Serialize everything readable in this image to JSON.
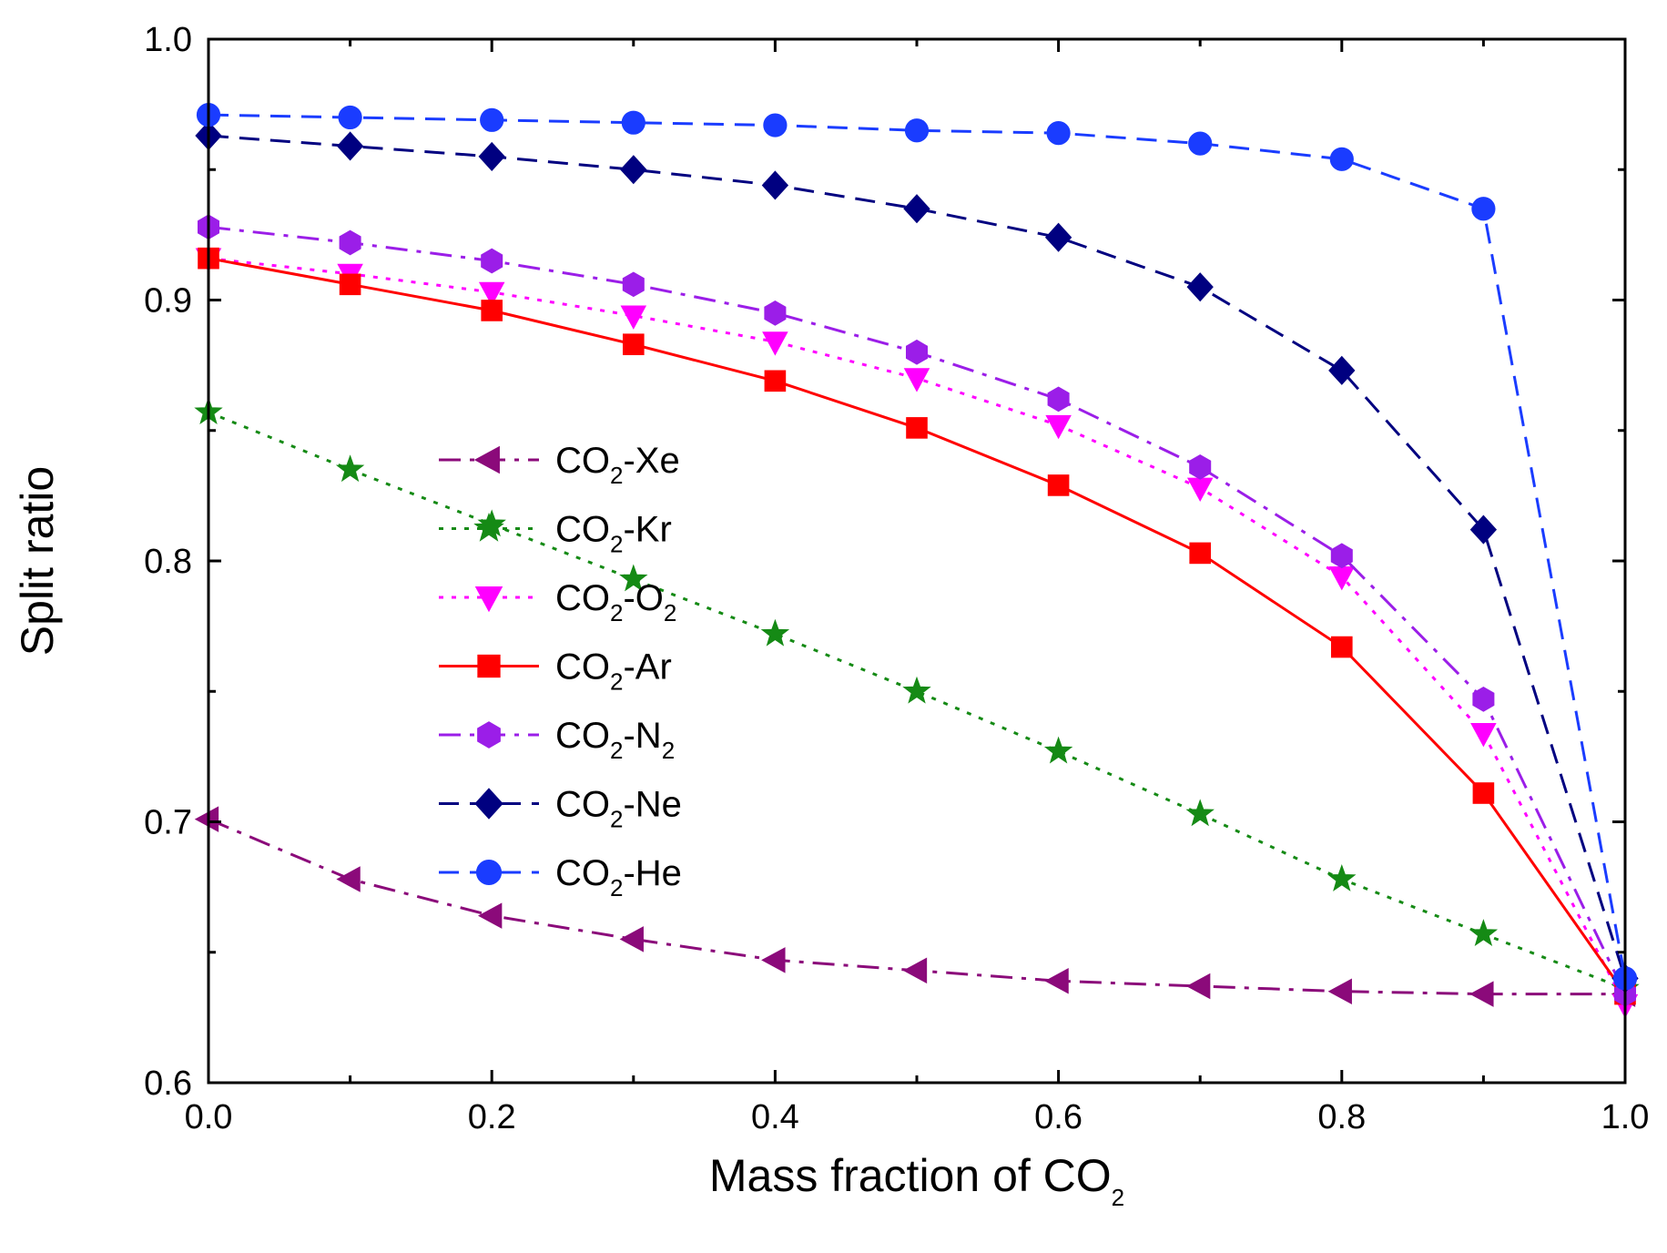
{
  "chart_data": {
    "type": "line",
    "title": "",
    "xlabel": "Mass fraction of CO",
    "xlabel_sub": "2",
    "ylabel": "Split ratio",
    "xlim": [
      0.0,
      1.0
    ],
    "ylim": [
      0.6,
      1.0
    ],
    "x_ticks": [
      0.0,
      0.2,
      0.4,
      0.6,
      0.8,
      1.0
    ],
    "x_tick_labels": [
      "0.0",
      "0.2",
      "0.4",
      "0.6",
      "0.8",
      "1.0"
    ],
    "x_minor_ticks": [
      0.1,
      0.3,
      0.5,
      0.7,
      0.9
    ],
    "y_ticks": [
      0.6,
      0.7,
      0.8,
      0.9,
      1.0
    ],
    "y_tick_labels": [
      "0.6",
      "0.7",
      "0.8",
      "0.9",
      "1.0"
    ],
    "y_minor_ticks": [
      0.65,
      0.75,
      0.85,
      0.95
    ],
    "grid": false,
    "legend_position": "center-left",
    "x": [
      0.0,
      0.1,
      0.2,
      0.3,
      0.4,
      0.5,
      0.6,
      0.7,
      0.8,
      0.9,
      1.0
    ],
    "series": [
      {
        "name": "CO2-Xe",
        "label_main": "CO",
        "label_sub": "2",
        "label_rest": "-Xe",
        "label_rest_sub": "",
        "color": "#8b0a7a",
        "marker": "triangle-left",
        "dash": "dashdot",
        "values": [
          0.701,
          0.678,
          0.664,
          0.655,
          0.647,
          0.643,
          0.639,
          0.637,
          0.635,
          0.634,
          0.634
        ]
      },
      {
        "name": "CO2-Kr",
        "label_main": "CO",
        "label_sub": "2",
        "label_rest": "-Kr",
        "label_rest_sub": "",
        "color": "#158a15",
        "marker": "star",
        "dash": "dot",
        "values": [
          0.857,
          0.835,
          0.814,
          0.793,
          0.772,
          0.75,
          0.727,
          0.703,
          0.678,
          0.657,
          0.636
        ]
      },
      {
        "name": "CO2-O2",
        "label_main": "CO",
        "label_sub": "2",
        "label_rest": "-O",
        "label_rest_sub": "2",
        "color": "#ff00ff",
        "marker": "triangle-down",
        "dash": "dot",
        "values": [
          0.916,
          0.91,
          0.903,
          0.894,
          0.884,
          0.87,
          0.852,
          0.828,
          0.794,
          0.734,
          0.63
        ]
      },
      {
        "name": "CO2-Ar",
        "label_main": "CO",
        "label_sub": "2",
        "label_rest": "-Ar",
        "label_rest_sub": "",
        "color": "#ff0000",
        "marker": "square",
        "dash": "solid",
        "values": [
          0.916,
          0.906,
          0.896,
          0.883,
          0.869,
          0.851,
          0.829,
          0.803,
          0.767,
          0.711,
          0.634
        ]
      },
      {
        "name": "CO2-N2",
        "label_main": "CO",
        "label_sub": "2",
        "label_rest": "-N",
        "label_rest_sub": "2",
        "color": "#9b1ee8",
        "marker": "hexagon",
        "dash": "dashdot",
        "values": [
          0.928,
          0.922,
          0.915,
          0.906,
          0.895,
          0.88,
          0.862,
          0.836,
          0.802,
          0.747,
          0.634
        ]
      },
      {
        "name": "CO2-Ne",
        "label_main": "CO",
        "label_sub": "2",
        "label_rest": "-Ne",
        "label_rest_sub": "",
        "color": "#000080",
        "marker": "diamond",
        "dash": "dash",
        "values": [
          0.963,
          0.959,
          0.955,
          0.95,
          0.944,
          0.935,
          0.924,
          0.905,
          0.873,
          0.812,
          0.64
        ]
      },
      {
        "name": "CO2-He",
        "label_main": "CO",
        "label_sub": "2",
        "label_rest": "-He",
        "label_rest_sub": "",
        "color": "#1a3cff",
        "marker": "circle",
        "dash": "dash",
        "values": [
          0.971,
          0.97,
          0.969,
          0.968,
          0.967,
          0.965,
          0.964,
          0.96,
          0.954,
          0.935,
          0.64
        ]
      }
    ]
  }
}
